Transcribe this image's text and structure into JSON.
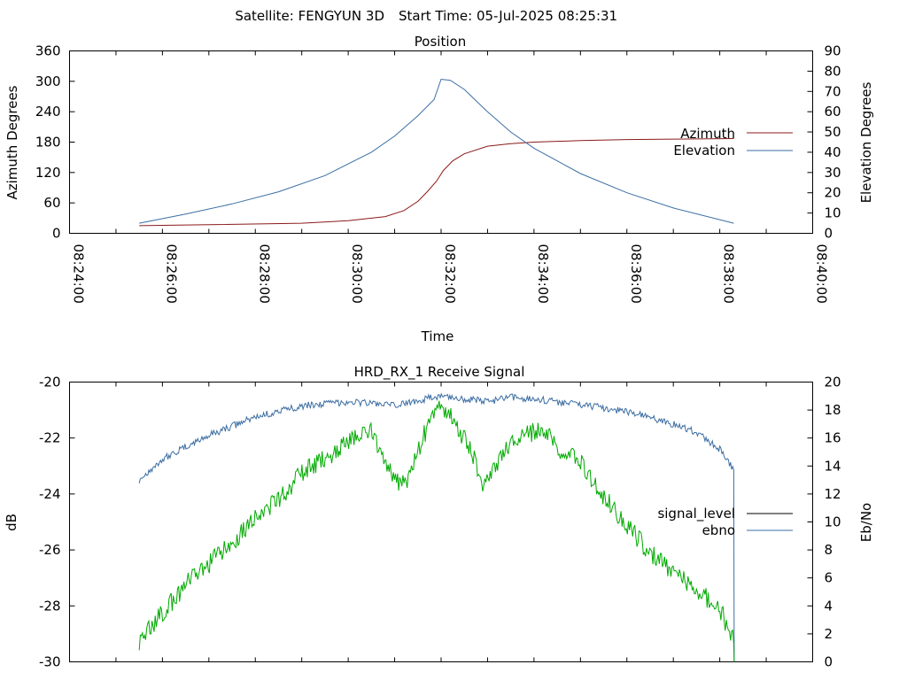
{
  "header": {
    "satellite_label": "Satellite: FENGYUN 3D",
    "start_time_label": "Start Time: 05-Jul-2025 08:25:31"
  },
  "chart_data": [
    {
      "type": "line",
      "title": "Position",
      "xlabel": "Time",
      "ylabel": "Azimuth Degrees",
      "y2label": "Elevation Degrees",
      "x_ticks": [
        "08:24:00",
        "08:26:00",
        "08:28:00",
        "08:30:00",
        "08:32:00",
        "08:34:00",
        "08:36:00",
        "08:38:00",
        "08:40:00"
      ],
      "xlim_minutes": [
        0,
        16
      ],
      "ylim": [
        0,
        360
      ],
      "y_ticks": [
        0,
        60,
        120,
        180,
        240,
        300,
        360
      ],
      "y2lim": [
        0,
        90
      ],
      "y2_ticks": [
        0,
        10,
        20,
        30,
        40,
        50,
        60,
        70,
        80,
        90
      ],
      "legend_placement": "right",
      "series": [
        {
          "name": "Azimuth",
          "axis": "y",
          "color": "#8b1a1a",
          "x_minutes": [
            1.5,
            3,
            5,
            6,
            6.8,
            7.2,
            7.5,
            7.7,
            7.9,
            8.05,
            8.25,
            8.5,
            9,
            9.5,
            10,
            11,
            12,
            13,
            14.3
          ],
          "values": [
            15,
            17,
            20,
            25,
            33,
            45,
            63,
            82,
            103,
            124,
            143,
            157,
            172,
            177,
            180,
            183,
            185,
            186,
            187
          ]
        },
        {
          "name": "Elevation",
          "axis": "y2",
          "color": "#3c6ea3",
          "x_minutes": [
            1.5,
            2.5,
            3.5,
            4.5,
            5.5,
            6.5,
            7,
            7.5,
            7.85,
            8,
            8.2,
            8.5,
            9,
            9.5,
            10,
            11,
            12,
            13,
            14.3
          ],
          "values": [
            5,
            9.5,
            14.5,
            20.5,
            28.5,
            40,
            48,
            58,
            66,
            76,
            75.5,
            71,
            60,
            50,
            42,
            29.5,
            20,
            12.5,
            5
          ]
        }
      ]
    },
    {
      "type": "line",
      "title": "HRD_RX_1 Receive Signal",
      "ylabel": "dB",
      "y2label": "Eb/No",
      "xlim_minutes": [
        0,
        16
      ],
      "ylim": [
        -30,
        -20
      ],
      "y_ticks": [
        -30,
        -28,
        -26,
        -24,
        -22,
        -20
      ],
      "y2lim": [
        0,
        20
      ],
      "y2_ticks": [
        0,
        2,
        4,
        6,
        8,
        10,
        12,
        14,
        16,
        18,
        20
      ],
      "legend_placement": "right",
      "series": [
        {
          "name": "signal_level",
          "axis": "y",
          "color": "#000000",
          "x_minutes": [],
          "values": []
        },
        {
          "name": "ebno",
          "axis": "y2",
          "color": "#3c6ea3",
          "x_minutes": [
            1.5,
            2,
            3,
            4,
            5,
            6,
            6.5,
            7,
            7.5,
            8,
            8.5,
            9,
            9.5,
            10,
            10.5,
            11,
            12,
            13,
            13.5,
            14,
            14.3
          ],
          "values": [
            13,
            14.5,
            16.2,
            17.5,
            18.3,
            18.6,
            18.5,
            18.3,
            18.7,
            19,
            18.8,
            18.6,
            18.9,
            18.8,
            18.6,
            18.4,
            17.9,
            17,
            16.4,
            15.2,
            13.7
          ]
        },
        {
          "name": "",
          "axis": "y2",
          "color": "#00aa00",
          "x_minutes": [
            1.5,
            2,
            2.5,
            3,
            3.5,
            4,
            4.5,
            5,
            5.5,
            6,
            6.5,
            6.8,
            7,
            7.3,
            7.6,
            8,
            8.3,
            8.6,
            8.9,
            9.2,
            9.5,
            10,
            10.3,
            10.6,
            10.9,
            11.2,
            11.5,
            12,
            12.5,
            13,
            13.5,
            14,
            14.3
          ],
          "values": [
            1.5,
            3.5,
            5.5,
            7,
            8.5,
            10.5,
            11.5,
            13.5,
            14.5,
            15.8,
            16.5,
            14.5,
            12.8,
            13,
            16,
            18.5,
            17,
            15.5,
            12.8,
            14,
            15.6,
            16.5,
            16.2,
            14.5,
            14.8,
            13.3,
            11.8,
            9.8,
            7.8,
            6.5,
            5.2,
            3.8,
            1.5
          ]
        }
      ]
    }
  ]
}
